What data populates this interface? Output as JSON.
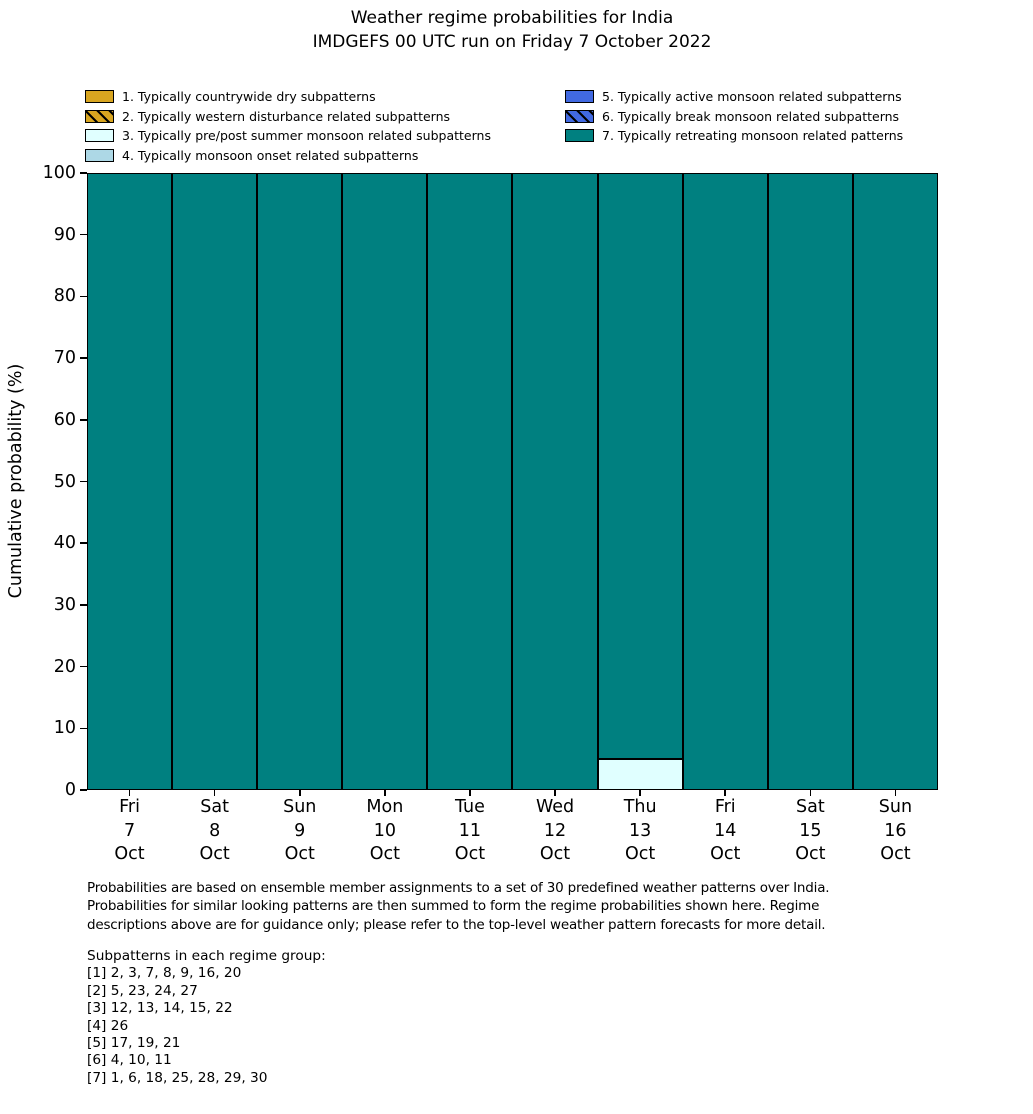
{
  "title": {
    "line1": "Weather regime probabilities for India",
    "line2": "IMDGEFS 00 UTC run on Friday 7 October 2022"
  },
  "colors": {
    "regime1": "#d8a520",
    "regime2": "#d8a520",
    "regime3": "#e0ffff",
    "regime4": "#add8e6",
    "regime5": "#4169e1",
    "regime6": "#4169e1",
    "regime7": "#008080",
    "edge": "#000000"
  },
  "legend": {
    "left": [
      {
        "label": "1. Typically countrywide dry subpatterns",
        "color": "#d8a520",
        "hatch": false
      },
      {
        "label": "2. Typically western disturbance related subpatterns",
        "color": "#d8a520",
        "hatch": true
      },
      {
        "label": "3. Typically pre/post summer monsoon related subpatterns",
        "color": "#e0ffff",
        "hatch": false
      },
      {
        "label": "4. Typically monsoon onset related subpatterns",
        "color": "#add8e6",
        "hatch": false
      }
    ],
    "right": [
      {
        "label": "5. Typically active monsoon related subpatterns",
        "color": "#4169e1",
        "hatch": false
      },
      {
        "label": "6. Typically break monsoon related subpatterns",
        "color": "#4169e1",
        "hatch": true
      },
      {
        "label": "7. Typically retreating monsoon related patterns",
        "color": "#008080",
        "hatch": false
      }
    ]
  },
  "chart_data": {
    "type": "stacked_bar",
    "title": "Weather regime probabilities for India",
    "subtitle": "IMDGEFS 00 UTC run on Friday 7 October 2022",
    "ylabel": "Cumulative probability (%)",
    "ylim": [
      0,
      100
    ],
    "yticks": [
      0,
      10,
      20,
      30,
      40,
      50,
      60,
      70,
      80,
      90,
      100
    ],
    "grid": false,
    "legend_position": "top",
    "categories": [
      {
        "day": "Fri",
        "date": "7",
        "month": "Oct"
      },
      {
        "day": "Sat",
        "date": "8",
        "month": "Oct"
      },
      {
        "day": "Sun",
        "date": "9",
        "month": "Oct"
      },
      {
        "day": "Mon",
        "date": "10",
        "month": "Oct"
      },
      {
        "day": "Tue",
        "date": "11",
        "month": "Oct"
      },
      {
        "day": "Wed",
        "date": "12",
        "month": "Oct"
      },
      {
        "day": "Thu",
        "date": "13",
        "month": "Oct"
      },
      {
        "day": "Fri",
        "date": "14",
        "month": "Oct"
      },
      {
        "day": "Sat",
        "date": "15",
        "month": "Oct"
      },
      {
        "day": "Sun",
        "date": "16",
        "month": "Oct"
      }
    ],
    "series": [
      {
        "name": "1. Typically countrywide dry subpatterns",
        "color": "#d8a520",
        "hatch": false,
        "values": [
          0,
          0,
          0,
          0,
          0,
          0,
          0,
          0,
          0,
          0
        ]
      },
      {
        "name": "2. Typically western disturbance related subpatterns",
        "color": "#d8a520",
        "hatch": true,
        "values": [
          0,
          0,
          0,
          0,
          0,
          0,
          0,
          0,
          0,
          0
        ]
      },
      {
        "name": "3. Typically pre/post summer monsoon related subpatterns",
        "color": "#e0ffff",
        "hatch": false,
        "values": [
          0,
          0,
          0,
          0,
          0,
          0,
          5,
          0,
          0,
          0
        ]
      },
      {
        "name": "4. Typically monsoon onset related subpatterns",
        "color": "#add8e6",
        "hatch": false,
        "values": [
          0,
          0,
          0,
          0,
          0,
          0,
          0,
          0,
          0,
          0
        ]
      },
      {
        "name": "5. Typically active monsoon related subpatterns",
        "color": "#4169e1",
        "hatch": false,
        "values": [
          0,
          0,
          0,
          0,
          0,
          0,
          0,
          0,
          0,
          0
        ]
      },
      {
        "name": "6. Typically break monsoon related subpatterns",
        "color": "#4169e1",
        "hatch": true,
        "values": [
          0,
          0,
          0,
          0,
          0,
          0,
          0,
          0,
          0,
          0
        ]
      },
      {
        "name": "7. Typically retreating monsoon related patterns",
        "color": "#008080",
        "hatch": false,
        "values": [
          100,
          100,
          100,
          100,
          100,
          100,
          95,
          100,
          100,
          100
        ]
      }
    ]
  },
  "footer": {
    "lines": [
      "Probabilities are based on ensemble member assignments to a set of 30 predefined weather patterns over India.",
      "Probabilities for similar looking patterns are then summed to form the regime probabilities shown here. Regime",
      "descriptions above are for guidance only; please refer to the top-level weather pattern forecasts for more detail."
    ]
  },
  "subpatterns": {
    "heading": "Subpatterns in each regime group:",
    "lines": [
      "[1] 2, 3, 7, 8, 9, 16, 20",
      "[2] 5, 23, 24, 27",
      "[3] 12, 13, 14, 15, 22",
      "[4] 26",
      "[5] 17, 19, 21",
      "[6] 4, 10, 11",
      "[7] 1, 6, 18, 25, 28, 29, 30"
    ]
  }
}
